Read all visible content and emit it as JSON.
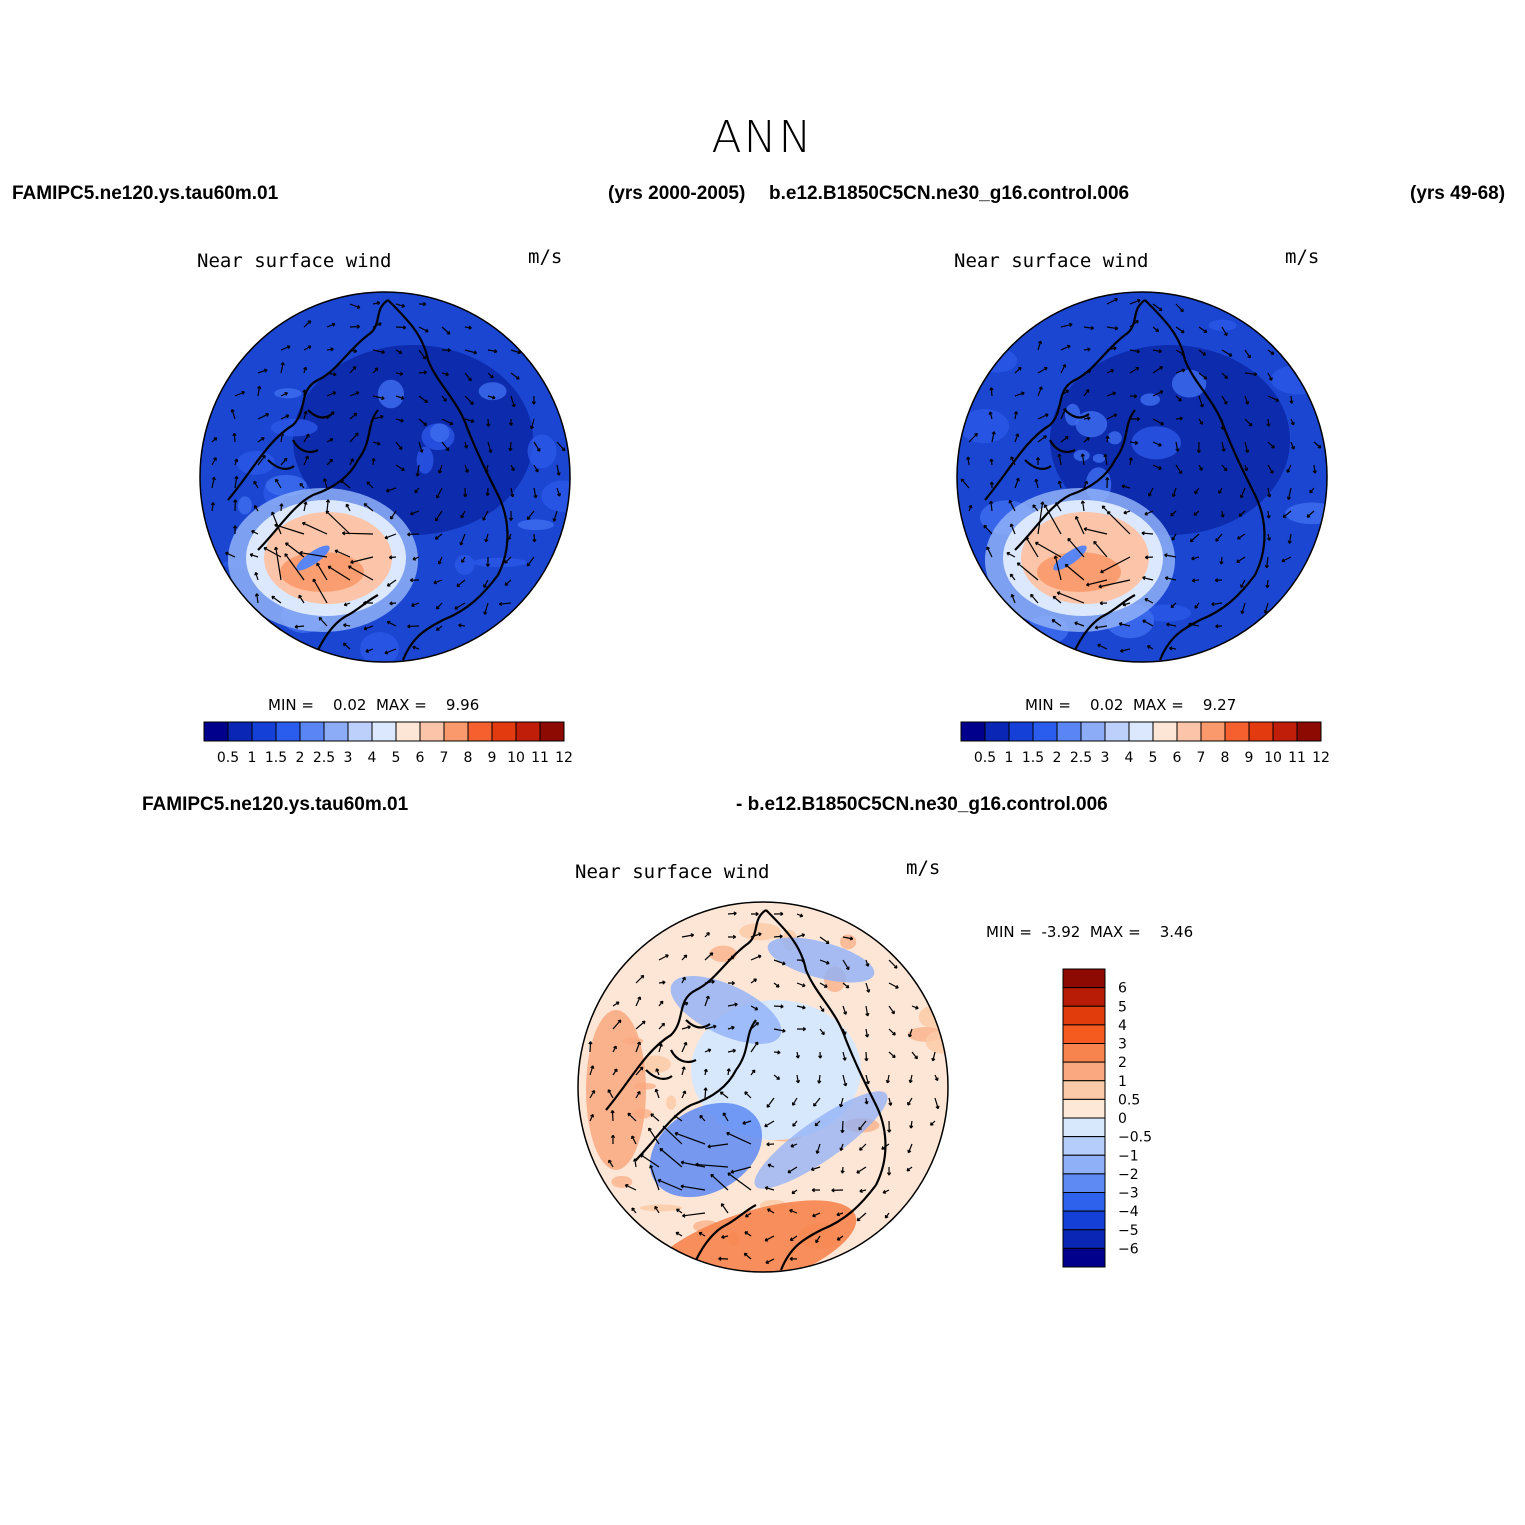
{
  "title": "ANN",
  "header": {
    "case1_name": "FAMIPC5.ne120.ys.tau60m.01",
    "case1_years": "(yrs 2000-2005)",
    "case2_name": "b.e12.B1850C5CN.ne30_g16.control.006",
    "case2_years": "(yrs 49-68)",
    "diff_left": "FAMIPC5.ne120.ys.tau60m.01",
    "diff_right": "- b.e12.B1850C5CN.ne30_g16.control.006"
  },
  "panels": [
    {
      "variable": "Near surface wind",
      "units": "m/s",
      "min_label": "MIN =",
      "min_value": "0.02",
      "max_label": "MAX =",
      "max_value": "9.96"
    },
    {
      "variable": "Near surface wind",
      "units": "m/s",
      "min_label": "MIN =",
      "min_value": "0.02",
      "max_label": "MAX =",
      "max_value": "9.27"
    },
    {
      "variable": "Near surface wind",
      "units": "m/s",
      "min_label": "MIN =",
      "min_value": "-3.92",
      "max_label": "MAX =",
      "max_value": "3.46"
    }
  ],
  "colorbar_abs": {
    "labels": [
      "0.5",
      "1",
      "1.5",
      "2",
      "2.5",
      "3",
      "4",
      "5",
      "6",
      "7",
      "8",
      "9",
      "10",
      "11",
      "12"
    ],
    "colors": [
      "#00008c",
      "#0a26b4",
      "#1440d8",
      "#2a5cee",
      "#5a86f5",
      "#8cacf8",
      "#bcd0fb",
      "#dce8fd",
      "#fde6d6",
      "#fcc4a8",
      "#fa9a6c",
      "#f5602e",
      "#e33a10",
      "#c01e08",
      "#8c0a02"
    ]
  },
  "colorbar_diff": {
    "labels": [
      "6",
      "5",
      "4",
      "3",
      "2",
      "1",
      "0.5",
      "0",
      "−0.5",
      "−1",
      "−2",
      "−3",
      "−4",
      "−5",
      "−6"
    ],
    "colors": [
      "#8c0a02",
      "#b81c06",
      "#e03c0c",
      "#f55a1e",
      "#f7844e",
      "#f9a880",
      "#fbcaa8",
      "#fde8d8",
      "#d8e8fc",
      "#b4cdfa",
      "#8fb0f7",
      "#5e8af3",
      "#2e62ec",
      "#1440d8",
      "#0a26b4",
      "#00008c"
    ]
  }
}
